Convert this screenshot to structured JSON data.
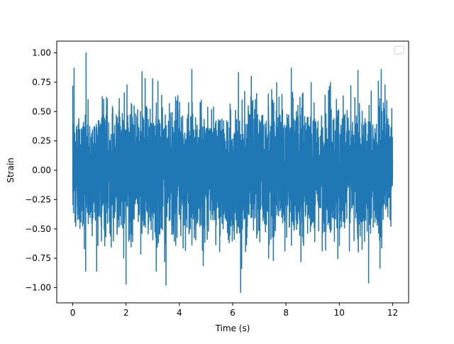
{
  "chart_data": {
    "type": "line",
    "title": "",
    "xlabel": "Time (s)",
    "ylabel": "Strain",
    "xlim": [
      -0.6,
      12.6
    ],
    "ylim": [
      -1.13,
      1.1
    ],
    "x_ticks": [
      0,
      2,
      4,
      6,
      8,
      10,
      12
    ],
    "x_tick_labels": [
      "0",
      "2",
      "4",
      "6",
      "8",
      "10",
      "12"
    ],
    "y_ticks": [
      -1.0,
      -0.75,
      -0.5,
      -0.25,
      0.0,
      0.25,
      0.5,
      0.75,
      1.0
    ],
    "y_tick_labels": [
      "−1.00",
      "−0.75",
      "−0.50",
      "−0.25",
      "0.00",
      "0.25",
      "0.50",
      "0.75",
      "1.00"
    ],
    "grid": false,
    "legend": {
      "placement": "top-right",
      "entries": []
    },
    "series": [
      {
        "color": "#1f77b4",
        "x_range": [
          0,
          12
        ],
        "typical_band": [
          -0.5,
          0.5
        ],
        "peak_max": {
          "x": 0.5,
          "y": 1.0
        },
        "peak_min": {
          "x": 6.3,
          "y": -1.04
        },
        "notable_peaks": [
          {
            "x": 0.05,
            "y": 0.87
          },
          {
            "x": 0.5,
            "y": 1.0
          },
          {
            "x": 2.6,
            "y": 0.84
          },
          {
            "x": 6.7,
            "y": 0.8
          },
          {
            "x": 8.2,
            "y": 0.87
          },
          {
            "x": 10.7,
            "y": 0.85
          },
          {
            "x": 2.0,
            "y": -0.97
          },
          {
            "x": 3.5,
            "y": -0.98
          },
          {
            "x": 6.3,
            "y": -1.04
          },
          {
            "x": 11.1,
            "y": -0.96
          }
        ]
      }
    ]
  }
}
